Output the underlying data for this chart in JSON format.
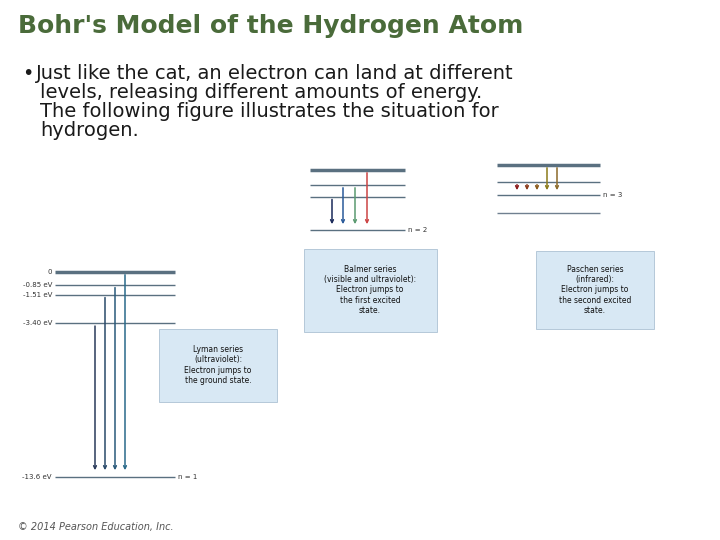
{
  "title": "Bohr's Model of the Hydrogen Atom",
  "title_color": "#4a6b3a",
  "title_fontsize": 18,
  "bg_color": "#ffffff",
  "bullet_lines": [
    "Just like the cat, an electron can land at different",
    "levels, releasing different amounts of energy.",
    "The following figure illustrates the situation for",
    "hydrogen."
  ],
  "bullet_fontsize": 14,
  "bullet_color": "#1a1a1a",
  "footer": "© 2014 Pearson Education, Inc.",
  "footer_fontsize": 7,
  "footer_color": "#555555",
  "level_color": "#708090",
  "level_color_thick": "#5a7080",
  "box_bg": "#d8e8f4",
  "box_edge": "#a0b8cc",
  "lyman_arrow_colors": [
    "#2a3a5a",
    "#2a4a6a",
    "#2a5a7a",
    "#2a6a8a"
  ],
  "balmer_arrow_colors": [
    "#1a2a5a",
    "#2a5a9a",
    "#5a9a70",
    "#cc4444"
  ],
  "paschen_arrow_colors": [
    "#8b1a1a",
    "#8b3a1a",
    "#8b5a1a",
    "#8b7a1a",
    "#8b6a2a"
  ],
  "lyman_label": "Lyman series\n(ultraviolet):\nElectron jumps to\nthe ground state.",
  "balmer_label": "Balmer series\n(visible and ultraviolet):\nElectron jumps to\nthe first excited\nstate.",
  "paschen_label": "Paschen series\n(infrared):\nElectron jumps to\nthe second excited\nstate."
}
